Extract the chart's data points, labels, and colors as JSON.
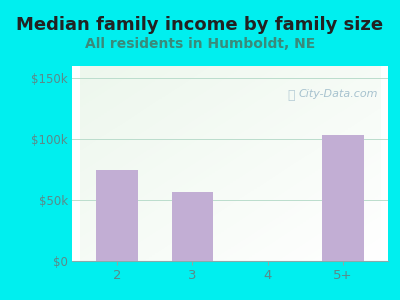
{
  "title": "Median family income by family size",
  "subtitle": "All residents in Humboldt, NE",
  "categories": [
    "2",
    "3",
    "4",
    "5+"
  ],
  "values": [
    75000,
    57000,
    0,
    103000
  ],
  "bar_color": "#c2aed4",
  "outer_bg": "#00efef",
  "title_color": "#222222",
  "subtitle_color": "#3a8a7a",
  "tick_color": "#5a8a8a",
  "grid_color": "#bbddcc",
  "yticks": [
    0,
    50000,
    100000,
    150000
  ],
  "ytick_labels": [
    "$0",
    "$50k",
    "$100k",
    "$150k"
  ],
  "ylim": [
    0,
    160000
  ],
  "watermark": "City-Data.com",
  "watermark_color": "#99b8c8",
  "title_fontsize": 13,
  "subtitle_fontsize": 10,
  "plot_bg_colors": [
    "#e8f5e8",
    "#f8fffa"
  ]
}
